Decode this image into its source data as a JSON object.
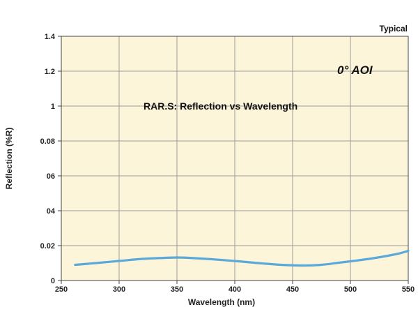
{
  "chart_data": {
    "type": "line",
    "title": "RAR.S: Reflection vs Wavelength",
    "corner_note": "Typical",
    "annotation": "0° AOI",
    "xlabel": "Wavelength (nm)",
    "ylabel": "Reflection (%R)",
    "xlim": [
      250,
      550
    ],
    "ylim": [
      0,
      7
    ],
    "grid": true,
    "x_ticks": [
      250,
      300,
      350,
      400,
      450,
      500,
      550
    ],
    "y_ticks": [
      {
        "value": 0,
        "label": "0"
      },
      {
        "value": 1,
        "label": "0.02"
      },
      {
        "value": 2,
        "label": "04"
      },
      {
        "value": 3,
        "label": "06"
      },
      {
        "value": 4,
        "label": "0.08"
      },
      {
        "value": 5,
        "label": "1"
      },
      {
        "value": 6,
        "label": "1.2"
      },
      {
        "value": 7,
        "label": "1.4"
      }
    ],
    "series": [
      {
        "name": "RAR.S",
        "color": "#5aa9d8",
        "x": [
          262,
          280,
          300,
          320,
          340,
          350,
          360,
          380,
          400,
          420,
          440,
          460,
          475,
          490,
          500,
          520,
          540,
          550
        ],
        "y": [
          0.45,
          0.5,
          0.56,
          0.62,
          0.65,
          0.66,
          0.65,
          0.61,
          0.56,
          0.5,
          0.45,
          0.43,
          0.45,
          0.51,
          0.55,
          0.64,
          0.76,
          0.85
        ]
      }
    ]
  },
  "style": {
    "plot_background": "#fdf5da",
    "grid_color": "#9a9a9a",
    "axis_color": "#444444"
  }
}
